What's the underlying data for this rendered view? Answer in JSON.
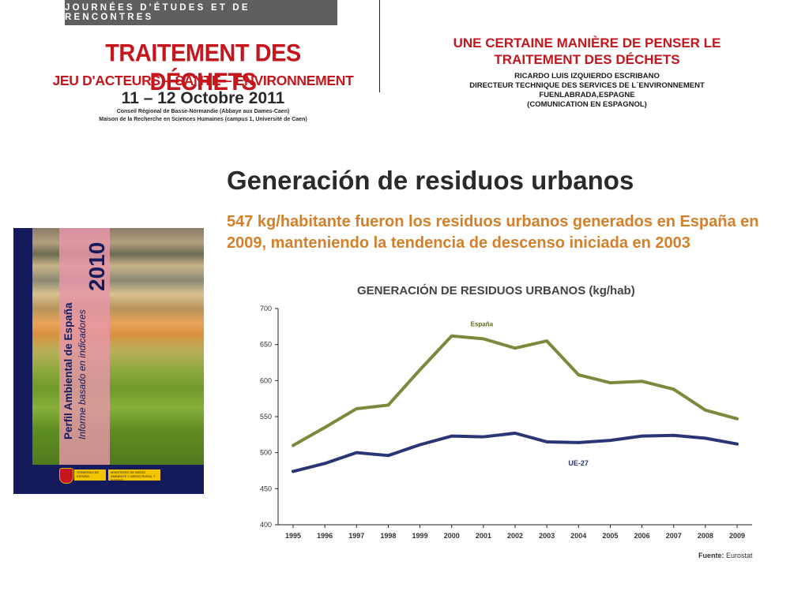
{
  "conference": {
    "band": "JOURNÉES D'ÉTUDES ET DE RENCONTRES",
    "title": "TRAITEMENT DES DÉCHETS",
    "subtitle": "JEU D'ACTEURS – SANTÉ – ENVIRONNEMENT",
    "dates": "11 – 12 Octobre 2011",
    "venue_line1": "Conseil Régional de Basse-Normandie (Abbaye aux Dames-Caen)",
    "venue_line2": "Maison de la Recherche en Sciences Humaines (campus 1, Université de Caen)"
  },
  "presentation": {
    "title_line1": "UNE CERTAINE MANIÈRE DE PENSER LE",
    "title_line2": "TRAITEMENT  DES DÉCHETS",
    "author": "RICARDO LUIS IZQUIERDO ESCRIBANO",
    "role": "DIRECTEUR TECHNIQUE DES SERVICES DE L´ENVIRONNEMENT",
    "location": "FUENLABRADA,ESPAGNE",
    "note": "(COMUNICATION EN ESPAGNOL)"
  },
  "cover": {
    "year": "2010",
    "title": "Perfil Ambiental de España",
    "subtitle": "Informe basado en indicadores",
    "logo1": "GOBIERNO DE ESPAÑA",
    "logo2": "MINISTERIO DE MEDIO AMBIENTE Y MEDIO RURAL Y MARINO"
  },
  "slide": {
    "title": "Generación de residuos urbanos",
    "subtitle": "547 kg/habitante fueron los residuos urbanos generados en España en 2009, manteniendo la tendencia de descenso iniciada en 2003"
  },
  "chart_data": {
    "type": "line",
    "title": "GENERACIÓN DE RESIDUOS URBANOS (kg/hab)",
    "x_tick_labels": [
      "1995",
      "1996",
      "1997",
      "1998",
      "1999",
      "2000",
      "2001",
      "2002",
      "2003",
      "2004",
      "2005",
      "2006",
      "2007",
      "2008",
      "2009"
    ],
    "y_tick_labels": [
      "700",
      "650",
      "600",
      "550",
      "500",
      "450",
      "400"
    ],
    "ylim": [
      400,
      700
    ],
    "grid": false,
    "series": [
      {
        "name": "España",
        "color": "#7a8a3c",
        "values": [
          510,
          535,
          561,
          566,
          615,
          662,
          658,
          645,
          655,
          608,
          597,
          599,
          588,
          559,
          547
        ]
      },
      {
        "name": "UE-27",
        "color": "#2b3575",
        "values": [
          474,
          485,
          500,
          496,
          511,
          523,
          522,
          527,
          515,
          514,
          517,
          523,
          524,
          520,
          512
        ]
      }
    ],
    "source_label": "Fuente:",
    "source": "Eurostat"
  }
}
